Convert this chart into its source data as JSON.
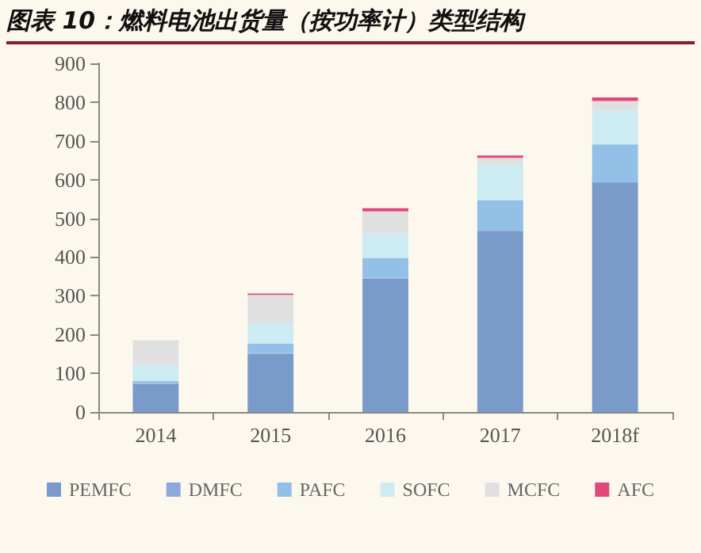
{
  "chart_data": {
    "type": "bar",
    "title": "图表 10：燃料电池出货量（按功率计）类型结构",
    "stacked": true,
    "categories": [
      "2014",
      "2015",
      "2016",
      "2017",
      "2018f"
    ],
    "series": [
      {
        "name": "PEMFC",
        "color": "#7a9bc9",
        "values": [
          72,
          150,
          344,
          468,
          591
        ]
      },
      {
        "name": "DMFC",
        "color": "#8fa8dc",
        "values": [
          2,
          2,
          2,
          2,
          2
        ]
      },
      {
        "name": "PAFC",
        "color": "#92c0e6",
        "values": [
          6,
          25,
          52,
          77,
          98
        ]
      },
      {
        "name": "SOFC",
        "color": "#cdebf2",
        "values": [
          41,
          52,
          63,
          91,
          88
        ]
      },
      {
        "name": "MCFC",
        "color": "#e0e0e0",
        "values": [
          64,
          73,
          57,
          18,
          24
        ]
      },
      {
        "name": "AFC",
        "color": "#e0487a",
        "values": [
          0,
          4,
          8,
          6,
          9
        ]
      }
    ],
    "ylim": [
      0,
      900
    ],
    "yticks": [
      0,
      100,
      200,
      300,
      400,
      500,
      600,
      700,
      800,
      900
    ],
    "grid": false,
    "legend": "bottom"
  }
}
